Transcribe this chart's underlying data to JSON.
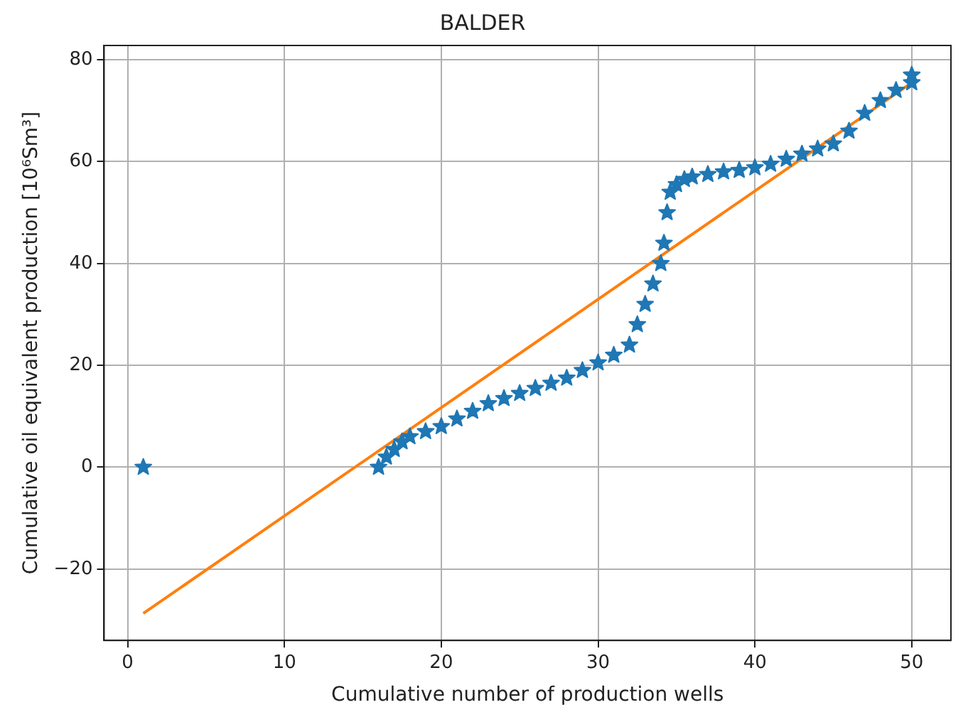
{
  "chart_data": {
    "type": "scatter",
    "title": "BALDER",
    "xlabel": "Cumulative number of production wells",
    "ylabel": "Cumulative oil equivalent production [10⁶Sm³]",
    "xlim": [
      -1.5,
      52.5
    ],
    "xticks": [
      0,
      10,
      20,
      30,
      40,
      50
    ],
    "ylim": [
      -34,
      82.8
    ],
    "yticks": [
      -20,
      0,
      20,
      40,
      60,
      80
    ],
    "grid": true,
    "legend": false,
    "series": [
      {
        "type": "scatter",
        "marker": "star",
        "color": "#1f77b4",
        "x": [
          1,
          16,
          16.5,
          17,
          17.5,
          18,
          19,
          20,
          21,
          22,
          23,
          24,
          25,
          26,
          27,
          28,
          29,
          30,
          31,
          32,
          32.5,
          33,
          33.5,
          34,
          34.2,
          34.4,
          34.6,
          35,
          35.5,
          36,
          37,
          38,
          39,
          40,
          41,
          42,
          43,
          44,
          45,
          46,
          47,
          48,
          49,
          50,
          50
        ],
        "values": [
          0,
          0,
          2,
          3.5,
          5,
          6,
          7,
          8,
          9.5,
          11,
          12.5,
          13.5,
          14.5,
          15.5,
          16.5,
          17.5,
          19,
          20.5,
          22,
          24,
          28,
          32,
          36,
          40,
          44,
          50,
          54,
          55.5,
          56.5,
          57,
          57.5,
          58,
          58.3,
          58.8,
          59.5,
          60.5,
          61.5,
          62.5,
          63.5,
          66,
          69.5,
          72,
          74,
          75.5,
          77
        ]
      },
      {
        "type": "line",
        "color": "#ff7f0e",
        "x": [
          1,
          50
        ],
        "values": [
          -28.7,
          75.5
        ]
      }
    ]
  }
}
